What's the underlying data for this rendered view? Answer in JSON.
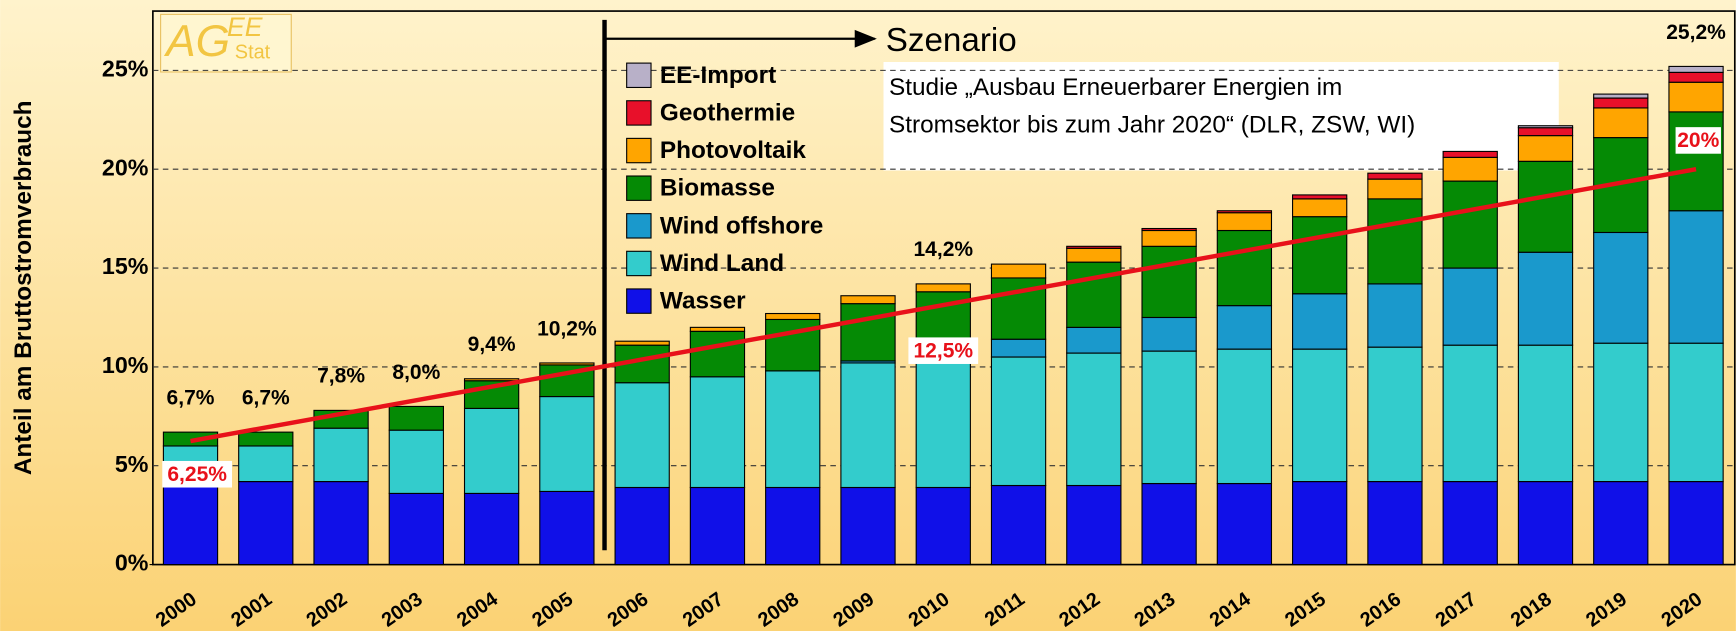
{
  "chart_data": {
    "type": "stacked_bar",
    "y_label": "Anteil am Bruttostromverbrauch",
    "categories": [
      "2000",
      "2001",
      "2002",
      "2003",
      "2004",
      "2005",
      "2006",
      "2007",
      "2008",
      "2009",
      "2010",
      "2011",
      "2012",
      "2013",
      "2014",
      "2015",
      "2016",
      "2017",
      "2018",
      "2019",
      "2020"
    ],
    "series": [
      {
        "name": "Wasser",
        "color": "#1010e8",
        "values": [
          4.2,
          4.2,
          4.2,
          3.6,
          3.6,
          3.7,
          3.9,
          3.9,
          3.9,
          3.9,
          3.9,
          4.0,
          4.0,
          4.1,
          4.1,
          4.2,
          4.2,
          4.2,
          4.2,
          4.2,
          4.2
        ]
      },
      {
        "name": "Wind Land",
        "color": "#33cccc",
        "values": [
          1.8,
          1.8,
          2.7,
          3.2,
          4.3,
          4.8,
          5.3,
          5.6,
          5.9,
          6.3,
          6.4,
          6.5,
          6.7,
          6.7,
          6.8,
          6.7,
          6.8,
          6.9,
          6.9,
          7.0,
          7.0
        ]
      },
      {
        "name": "Wind offshore",
        "color": "#1a99cc",
        "values": [
          0,
          0,
          0,
          0,
          0,
          0,
          0,
          0,
          0,
          0.1,
          0.4,
          0.9,
          1.3,
          1.7,
          2.2,
          2.8,
          3.2,
          3.9,
          4.7,
          5.6,
          6.7
        ]
      },
      {
        "name": "Biomasse",
        "color": "#058a05",
        "values": [
          0.7,
          0.7,
          0.9,
          1.2,
          1.4,
          1.6,
          1.9,
          2.3,
          2.6,
          2.9,
          3.1,
          3.1,
          3.3,
          3.6,
          3.8,
          3.9,
          4.3,
          4.4,
          4.6,
          4.8,
          5.0
        ]
      },
      {
        "name": "Photovoltaik",
        "color": "#ffa500",
        "values": [
          0,
          0,
          0,
          0,
          0.1,
          0.1,
          0.2,
          0.2,
          0.3,
          0.4,
          0.4,
          0.7,
          0.7,
          0.8,
          0.9,
          0.9,
          1.0,
          1.2,
          1.3,
          1.5,
          1.5
        ]
      },
      {
        "name": "Geothermie",
        "color": "#e8102a",
        "values": [
          0,
          0,
          0,
          0,
          0,
          0,
          0,
          0,
          0,
          0,
          0,
          0,
          0.1,
          0.1,
          0.1,
          0.2,
          0.3,
          0.3,
          0.4,
          0.5,
          0.5
        ]
      },
      {
        "name": "EE-Import",
        "color": "#b8b0c8",
        "values": [
          0,
          0,
          0,
          0,
          0,
          0,
          0,
          0,
          0,
          0,
          0,
          0,
          0,
          0,
          0,
          0,
          0,
          0,
          0.1,
          0.2,
          0.3
        ]
      }
    ],
    "totals": {
      "categories": [
        "2000",
        "2001",
        "2002",
        "2003",
        "2004",
        "2005",
        "2010",
        "2020"
      ],
      "values": [
        6.7,
        6.7,
        7.8,
        8.0,
        9.4,
        10.2,
        14.2,
        25.2
      ],
      "value_labels": [
        "6,7%",
        "6,7%",
        "7,8%",
        "8,0%",
        "9,4%",
        "10,2%",
        "14,2%",
        "25,2%"
      ]
    },
    "trend": {
      "color": "#e8111a",
      "x": [
        "2000",
        "2020"
      ],
      "values": [
        6.25,
        20
      ],
      "value_labels": [
        "6,25%",
        "20%"
      ]
    },
    "milestone": {
      "x": "2010",
      "value": 12.5,
      "label": "12,5%"
    },
    "scenario": {
      "label": "Szenario",
      "start": "2006"
    },
    "note": [
      "Studie „Ausbau Erneuerbarer Energien im",
      "Stromsektor bis zum Jahr 2020“ (DLR, ZSW, WI)"
    ],
    "logo": [
      "AG",
      "EE",
      "Stat"
    ],
    "ylim": [
      0,
      28
    ],
    "yticks": [
      {
        "value": 0,
        "label": "0%"
      },
      {
        "value": 5,
        "label": "5%"
      },
      {
        "value": 10,
        "label": "10%"
      },
      {
        "value": 15,
        "label": "15%"
      },
      {
        "value": 20,
        "label": "20%"
      },
      {
        "value": 25,
        "label": "25%"
      }
    ],
    "grid": true
  }
}
